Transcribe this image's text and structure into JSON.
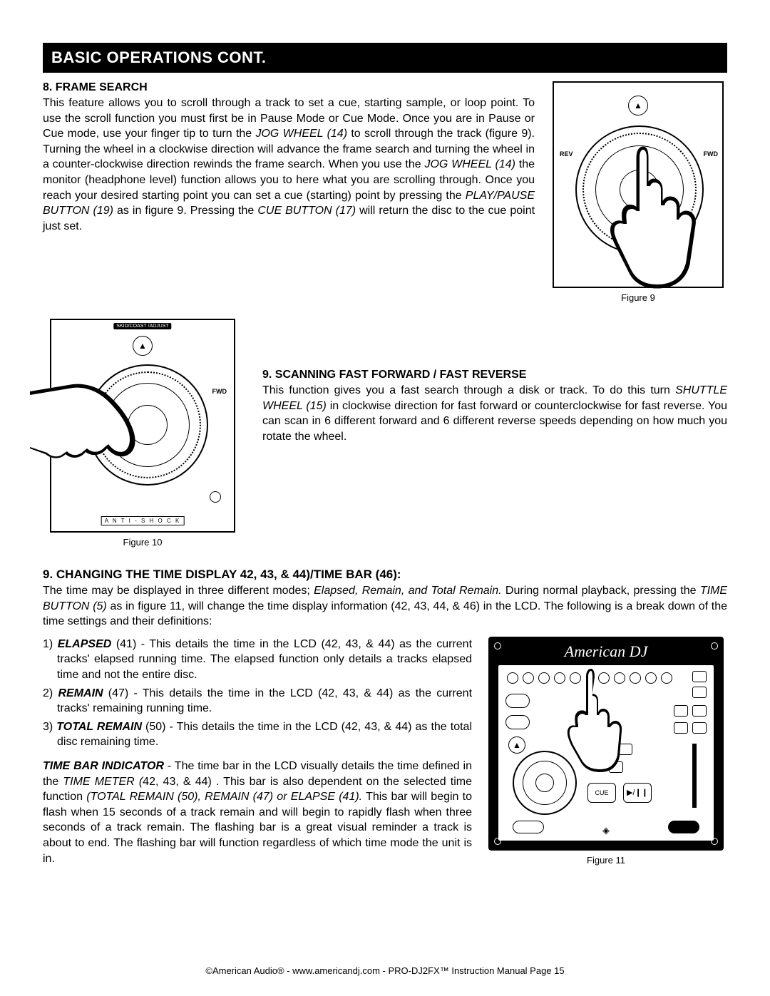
{
  "title_bar": "BASIC OPERATIONS CONT.",
  "section8": {
    "heading": "8. FRAME SEARCH",
    "text_parts": {
      "p1": "This feature allows you to scroll through a track to set a cue, starting sample, or loop point. To use the scroll function you must first be in Pause Mode or Cue Mode. Once you are in Pause or Cue mode, use your finger tip to turn the ",
      "jog_wheel": "JOG WHEEL (14)",
      "p2": " to scroll through the track (figure 9). Turning the wheel in a clockwise direction will advance the frame search and turning the wheel in a counter-clockwise direction rewinds the frame search. When you use the ",
      "jog_wheel2": "JOG WHEEL (14)",
      "p3": " the monitor (headphone level) function allows you to here what you are scrolling through. Once you reach your desired starting point you can set a cue (starting) point by pressing the ",
      "play_pause": "PLAY/PAUSE BUTTON (19)",
      "p4": " as in figure 9. Pressing the ",
      "cue_btn": "CUE BUTTON (17)",
      "p5": " will return the disc to the cue point just set."
    }
  },
  "section_scan": {
    "heading": "9. SCANNING FAST FORWARD / FAST REVERSE",
    "p1": "This function gives you a fast search through a disk or track. To do this turn ",
    "shuttle": "SHUTTLE WHEEL (15)",
    "p2": " in clockwise direction for fast forward or counterclockwise for fast reverse. You can scan in 6 different forward and 6 different reverse speeds depending on how much you rotate the wheel."
  },
  "section9": {
    "heading": "9. CHANGING THE TIME DISPLAY 42, 43, & 44)/TIME BAR (46):",
    "intro_p1": "The time may be displayed in three different modes; ",
    "modes": "Elapsed, Remain, and Total Remain.",
    "intro_p2": " During normal playback, pressing the ",
    "time_button": "TIME BUTTON (5)",
    "intro_p3": " as in figure 11, will change the time display information (42, 43, 44, & 46) in the LCD. The following is a break down of the time settings and their definitions:",
    "list": [
      {
        "n": "1) ",
        "label": "ELAPSED",
        "ref": " (41) - ",
        "text": "This details the time in the LCD (42, 43, & 44) as the current tracks' elapsed running time. The elapsed function only details a tracks elapsed time and not the entire disc."
      },
      {
        "n": "2) ",
        "label": "REMAIN",
        "ref": " (47) - ",
        "text": "This details the time in the LCD (42, 43, & 44) as the current tracks' remaining running time."
      },
      {
        "n": "3) ",
        "label": "TOTAL REMAIN",
        "ref": " (50) - ",
        "text": "This details the time in the LCD (42, 43, & 44) as the total disc remaining time."
      }
    ],
    "timebar": {
      "label": "TIME BAR INDICATOR",
      "p1": " - The time bar in the LCD visually details the time defined in the ",
      "meter": "TIME METER (",
      "meter2": "42, 43, & 44)",
      "p2": ". This bar is also dependent on the selected time function ",
      "funcs": "(TOTAL REMAIN (50), REMAIN (47) or ELAPSE (41).",
      "p3": " This bar will begin to flash when 15 seconds of a track remain and will begin to rapidly flash when three seconds of a track remain. The flashing bar is a great visual reminder a track is about to end. The flashing bar will function regardless of which time mode the unit is in."
    }
  },
  "figures": {
    "fig9": "Figure 9",
    "fig10": "Figure 10",
    "fig11": "Figure 11",
    "rev": "REV",
    "fwd": "FWD",
    "antishock": "A N T I - S H O C K",
    "skid": "SKID/COAST /ADJUST",
    "brand": "American DJ",
    "model": "PRO-DJ2",
    "fx": "FX",
    "cue": "CUE",
    "play": "▶/❙❙"
  },
  "footer": {
    "p1": "©American Audio®   -   www.americandj.com   -   PRO-DJ2FX™ Instruction Manual Page 15"
  },
  "colors": {
    "bg": "#ffffff",
    "fg": "#000000",
    "bar_bg": "#000000",
    "bar_fg": "#ffffff"
  }
}
